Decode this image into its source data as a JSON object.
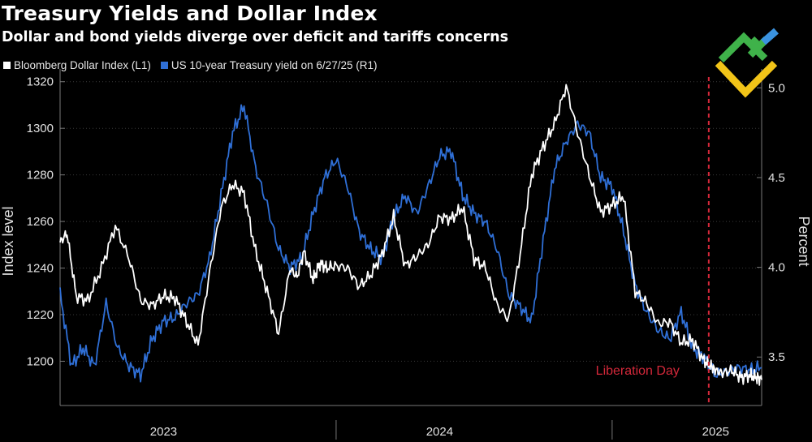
{
  "title": "Treasury Yields and Dollar Index",
  "subtitle": "Dollar and bond yields diverge over deficit and tariffs concerns",
  "legend": {
    "dollar": "Bloomberg Dollar Index (L1)",
    "yield": "US 10-year Treasury yield on 6/27/25 (R1)"
  },
  "colors": {
    "dollar": "#ffffff",
    "yield": "#2f6fd6",
    "annotation": "#d4283a",
    "grid": "#3a3a3a",
    "axis": "#777777"
  },
  "chart_data": {
    "type": "line",
    "title": "Treasury Yields and Dollar Index",
    "left_axis": {
      "label": "Index level",
      "range": [
        1181,
        1322
      ],
      "ticks": [
        "1200",
        "1220",
        "1240",
        "1260",
        "1280",
        "1300",
        "1320"
      ]
    },
    "right_axis": {
      "label": "Percent",
      "range": [
        3.23,
        5.06
      ],
      "ticks": [
        "3.5",
        "4.0",
        "4.5",
        "5.0"
      ]
    },
    "x_axis": {
      "range": [
        0,
        30.5
      ],
      "ticks": [
        "2023",
        "2024",
        "2025"
      ],
      "tick_positions": [
        4.5,
        16.5,
        28.5
      ],
      "dividers": [
        12,
        24
      ]
    },
    "series": [
      {
        "name": "Bloomberg Dollar Index (L1)",
        "axis": "left",
        "x": [
          0,
          0.3,
          0.7,
          1.2,
          1.8,
          2.4,
          3.0,
          3.5,
          4.0,
          4.5,
          5.0,
          5.5,
          6.0,
          6.5,
          7.0,
          7.5,
          8.0,
          8.5,
          9.0,
          9.5,
          10.0,
          10.3,
          10.6,
          11.0,
          11.3,
          11.6,
          12.0,
          12.5,
          13.0,
          13.5,
          14.0,
          14.5,
          15.0,
          15.5,
          16.0,
          16.5,
          17.0,
          17.5,
          18.0,
          18.5,
          19.0,
          19.5,
          20.0,
          20.5,
          21.0,
          21.5,
          22.0,
          22.5,
          23.0,
          23.5,
          24.0,
          24.5,
          25.0,
          25.5,
          26.0,
          26.5,
          27.0,
          27.5,
          28.0,
          28.3,
          28.5,
          28.8,
          29.2,
          29.6,
          30.0,
          30.3,
          30.5
        ],
        "values": [
          1251,
          1255,
          1228,
          1226,
          1240,
          1258,
          1244,
          1226,
          1224,
          1228,
          1227,
          1217,
          1207,
          1238,
          1266,
          1276,
          1272,
          1247,
          1230,
          1212,
          1240,
          1236,
          1247,
          1235,
          1242,
          1240,
          1241,
          1240,
          1232,
          1237,
          1246,
          1262,
          1241,
          1245,
          1250,
          1262,
          1261,
          1266,
          1244,
          1240,
          1224,
          1218,
          1246,
          1280,
          1292,
          1302,
          1318,
          1298,
          1280,
          1264,
          1267,
          1271,
          1230,
          1225,
          1216,
          1217,
          1208,
          1209,
          1200,
          1198,
          1196,
          1195,
          1196,
          1193,
          1194,
          1193,
          1192
        ]
      },
      {
        "name": "US 10-year Treasury yield on 6/27/25 (R1)",
        "axis": "right",
        "x": [
          0,
          0.5,
          1.0,
          1.5,
          2.0,
          2.5,
          3.0,
          3.5,
          4.0,
          4.5,
          5.0,
          5.5,
          6.0,
          6.5,
          7.0,
          7.5,
          8.0,
          8.5,
          9.0,
          9.5,
          10.0,
          10.5,
          11.0,
          11.5,
          12.0,
          12.5,
          13.0,
          13.5,
          14.0,
          14.5,
          15.0,
          15.5,
          16.0,
          16.5,
          17.0,
          17.5,
          18.0,
          18.5,
          19.0,
          19.5,
          20.0,
          20.5,
          21.0,
          21.5,
          22.0,
          22.5,
          23.0,
          23.5,
          24.0,
          24.5,
          25.0,
          25.5,
          26.0,
          26.5,
          27.0,
          27.5,
          28.0,
          28.5,
          29.0,
          29.5,
          30.0,
          30.5
        ],
        "values": [
          3.85,
          3.45,
          3.55,
          3.45,
          3.8,
          3.55,
          3.45,
          3.4,
          3.6,
          3.7,
          3.72,
          3.8,
          3.85,
          4.05,
          4.4,
          4.75,
          4.9,
          4.55,
          4.35,
          4.1,
          4.0,
          4.05,
          4.3,
          4.5,
          4.6,
          4.45,
          4.2,
          4.1,
          4.05,
          4.28,
          4.4,
          4.3,
          4.45,
          4.62,
          4.65,
          4.4,
          4.3,
          4.25,
          4.1,
          3.85,
          3.78,
          3.7,
          4.15,
          4.55,
          4.7,
          4.8,
          4.75,
          4.5,
          4.45,
          4.2,
          3.9,
          3.75,
          3.65,
          3.6,
          3.75,
          3.55,
          3.5,
          3.4,
          3.42,
          3.44,
          3.43,
          3.44
        ]
      }
    ],
    "annotations": [
      {
        "label": "Liberation Day",
        "x": 28.2
      }
    ]
  }
}
